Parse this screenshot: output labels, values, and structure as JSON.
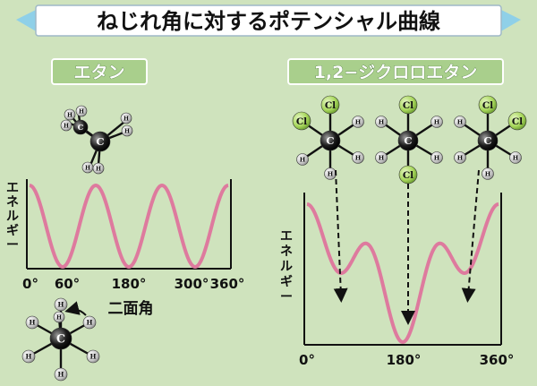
{
  "title": "ねじれ角に対するポテンシャル曲線",
  "colors": {
    "background": "#cfe3bd",
    "title_banner": "#ffffff",
    "banner_accent": "#8fd0e8",
    "label_bg": "#a9cf8c",
    "curve": "#de7a9e",
    "carbon": "#1a1a1a",
    "hydrogen": "#d8d8d8",
    "chlorine": "#a6d65a",
    "arrow": "#111111"
  },
  "ethane": {
    "label": "エタン",
    "y_axis_label": "エネルギー",
    "x_axis_label": "二面角",
    "x_ticks": [
      "0°",
      "60°",
      "180°",
      "300°",
      "360°"
    ],
    "molecule_labels": {
      "carbon": "C",
      "hydrogen": "H"
    }
  },
  "dichloroethane": {
    "label": "1,2−ジクロロエタン",
    "y_axis_label": "エネルギー",
    "x_ticks": [
      "0°",
      "180°",
      "360°"
    ],
    "molecule_labels": {
      "carbon": "C",
      "hydrogen": "H",
      "chlorine": "Cl"
    }
  }
}
